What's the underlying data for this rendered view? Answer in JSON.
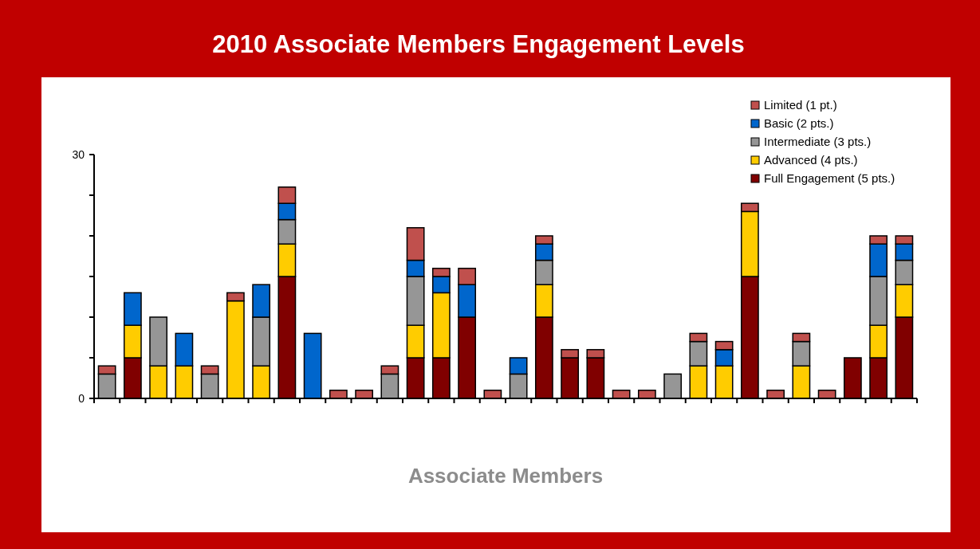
{
  "chart_data": {
    "type": "bar",
    "title": "2010 Associate Members Engagement Levels",
    "xlabel": "Associate Members",
    "stacked": true,
    "legend": "top right",
    "grid": false,
    "categories": [
      null,
      null,
      null,
      null,
      null,
      null,
      null,
      null,
      null,
      null,
      null,
      null,
      null,
      null,
      null,
      null,
      null,
      null,
      null,
      null,
      null,
      null,
      null,
      null,
      null,
      null,
      null,
      null,
      null,
      null,
      null,
      null
    ],
    "ylim": [
      0,
      30
    ],
    "yticks": [
      0,
      {
        "value": 5,
        "label": null
      },
      {
        "value": 10,
        "label": null
      },
      {
        "value": 15,
        "label": null
      },
      {
        "value": 20,
        "label": null
      },
      {
        "value": 25,
        "label": null
      },
      30
    ],
    "series": [
      {
        "name": "Full Engagement (5 pts.)",
        "color": "#800000",
        "values": [
          0,
          5,
          0,
          0,
          0,
          0,
          0,
          15,
          0,
          0,
          0,
          0,
          5,
          5,
          10,
          0,
          0,
          10,
          5,
          5,
          0,
          0,
          0,
          0,
          0,
          15,
          0,
          0,
          0,
          5,
          5,
          10
        ]
      },
      {
        "name": "Advanced (4 pts.)",
        "color": "#ffcc00",
        "values": [
          0,
          4,
          4,
          4,
          0,
          12,
          4,
          4,
          0,
          0,
          0,
          0,
          4,
          8,
          0,
          0,
          0,
          4,
          0,
          0,
          0,
          0,
          0,
          4,
          4,
          8,
          0,
          4,
          0,
          0,
          4,
          4
        ]
      },
      {
        "name": "Intermediate (3 pts.)",
        "color": "#969696",
        "values": [
          3,
          0,
          6,
          0,
          3,
          0,
          6,
          3,
          0,
          0,
          0,
          3,
          6,
          0,
          0,
          0,
          3,
          3,
          0,
          0,
          0,
          0,
          3,
          3,
          0,
          0,
          0,
          3,
          0,
          0,
          6,
          3
        ]
      },
      {
        "name": "Basic (2 pts.)",
        "color": "#0066cc",
        "values": [
          0,
          4,
          0,
          4,
          0,
          0,
          4,
          2,
          8,
          0,
          0,
          0,
          2,
          2,
          4,
          0,
          2,
          2,
          0,
          0,
          0,
          0,
          0,
          0,
          2,
          0,
          0,
          0,
          0,
          0,
          4,
          2
        ]
      },
      {
        "name": "Limited (1 pt.)",
        "color": "#c0504d",
        "values": [
          1,
          0,
          0,
          0,
          1,
          1,
          0,
          2,
          0,
          1,
          1,
          1,
          4,
          1,
          2,
          1,
          0,
          1,
          1,
          1,
          1,
          1,
          0,
          1,
          1,
          1,
          1,
          1,
          1,
          0,
          1,
          1
        ]
      }
    ]
  }
}
